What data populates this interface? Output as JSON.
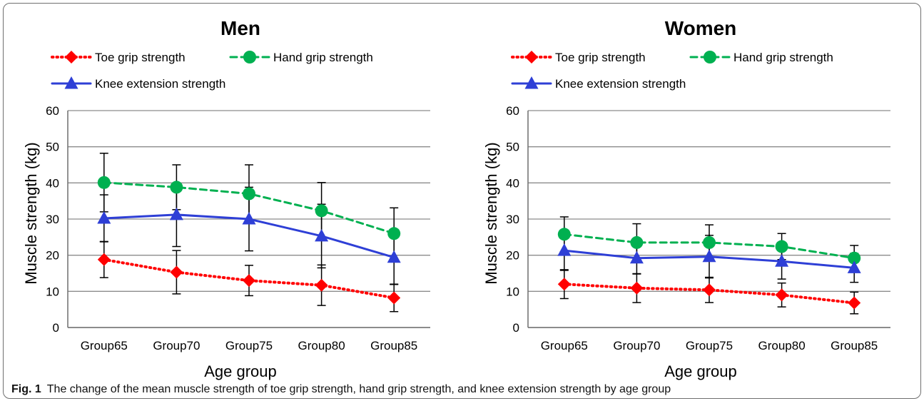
{
  "caption": {
    "label": "Fig. 1",
    "text": "The change of the mean muscle strength of toe grip strength, hand grip strength, and knee extension strength by age group"
  },
  "colors": {
    "toe": "#ff0000",
    "hand": "#00b050",
    "knee": "#2e3fd6",
    "error_bar": "#000000",
    "grid": "#8c8c8c"
  },
  "chart_data": [
    {
      "type": "line",
      "title": "Men",
      "xlabel": "Age group",
      "ylabel": "Muscle strength (kg)",
      "ylim": [
        0,
        60
      ],
      "yticks": [
        0,
        10,
        20,
        30,
        40,
        50,
        60
      ],
      "grid": true,
      "legend_position": "top",
      "categories": [
        "Group65",
        "Group70",
        "Group75",
        "Group80",
        "Group85"
      ],
      "series": [
        {
          "name": "Toe grip strength",
          "key": "toe",
          "line_style": "dotted",
          "marker": "diamond",
          "values": [
            18.8,
            15.3,
            13.0,
            11.7,
            8.2
          ],
          "error": [
            5.0,
            6.0,
            4.2,
            5.6,
            3.8
          ]
        },
        {
          "name": "Hand grip strength",
          "key": "hand",
          "line_style": "dashed",
          "marker": "circle",
          "values": [
            40.1,
            38.8,
            37.0,
            32.3,
            26.0
          ],
          "error": [
            8.1,
            6.2,
            8.0,
            7.8,
            7.1
          ]
        },
        {
          "name": "Knee extension strength",
          "key": "knee",
          "line_style": "solid",
          "marker": "triangle",
          "values": [
            30.2,
            31.2,
            30.0,
            25.3,
            19.4
          ],
          "error": [
            6.5,
            8.8,
            8.8,
            8.8,
            7.5
          ]
        }
      ]
    },
    {
      "type": "line",
      "title": "Women",
      "xlabel": "Age group",
      "ylabel": "Muscle strength (kg)",
      "ylim": [
        0,
        60
      ],
      "yticks": [
        0,
        10,
        20,
        30,
        40,
        50,
        60
      ],
      "grid": true,
      "legend_position": "top",
      "categories": [
        "Group65",
        "Group70",
        "Group75",
        "Group80",
        "Group85"
      ],
      "series": [
        {
          "name": "Toe grip strength",
          "key": "toe",
          "line_style": "dotted",
          "marker": "diamond",
          "values": [
            12.0,
            10.9,
            10.4,
            9.0,
            6.8
          ],
          "error": [
            4.0,
            4.0,
            3.5,
            3.3,
            3.0
          ]
        },
        {
          "name": "Hand grip strength",
          "key": "hand",
          "line_style": "dashed",
          "marker": "circle",
          "values": [
            25.8,
            23.5,
            23.5,
            22.4,
            19.2
          ],
          "error": [
            4.8,
            5.2,
            4.9,
            3.6,
            3.5
          ]
        },
        {
          "name": "Knee extension strength",
          "key": "knee",
          "line_style": "solid",
          "marker": "triangle",
          "values": [
            21.3,
            19.2,
            19.6,
            18.3,
            16.5
          ],
          "error": [
            5.5,
            4.4,
            5.9,
            4.9,
            4.0
          ]
        }
      ]
    }
  ]
}
